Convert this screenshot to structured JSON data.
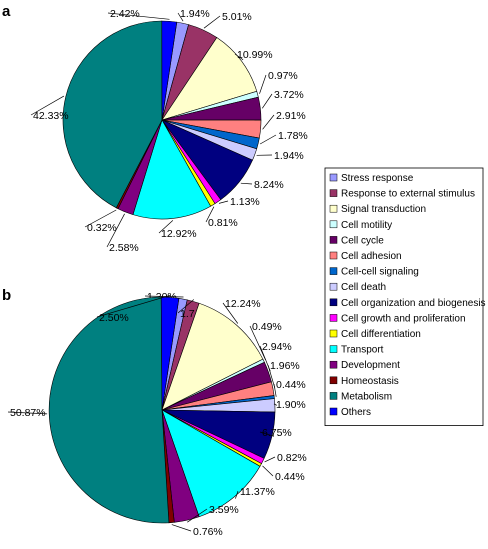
{
  "panel_labels": [
    "a",
    "b"
  ],
  "legend": {
    "entries": [
      {
        "label": "Stress response",
        "color": "#9999ff"
      },
      {
        "label": "Response to external stimulus",
        "color": "#993366"
      },
      {
        "label": "Signal transduction",
        "color": "#ffffcc"
      },
      {
        "label": "Cell motility",
        "color": "#ccffff"
      },
      {
        "label": "Cell cycle",
        "color": "#660066"
      },
      {
        "label": "Cell adhesion",
        "color": "#ff8080"
      },
      {
        "label": "Cell-cell signaling",
        "color": "#0066cc"
      },
      {
        "label": "Cell death",
        "color": "#ccccff"
      },
      {
        "label": "Cell organization and biogenesis",
        "color": "#000080"
      },
      {
        "label": "Cell growth and proliferation",
        "color": "#ff00ff"
      },
      {
        "label": "Cell differentiation",
        "color": "#ffff00"
      },
      {
        "label": "Transport",
        "color": "#00ffff"
      },
      {
        "label": "Development",
        "color": "#800080"
      },
      {
        "label": "Homeostasis",
        "color": "#800000"
      },
      {
        "label": "Metabolism",
        "color": "#008080"
      },
      {
        "label": "Others",
        "color": "#0000ff"
      }
    ]
  },
  "chart_data": [
    {
      "type": "pie",
      "panel": "a",
      "categories": [
        "Stress response",
        "Response to external stimulus",
        "Signal transduction",
        "Cell motility",
        "Cell cycle",
        "Cell adhesion",
        "Cell-cell signaling",
        "Cell death",
        "Cell organization and biogenesis",
        "Cell growth and proliferation",
        "Cell differentiation",
        "Transport",
        "Development",
        "Homeostasis",
        "Metabolism",
        "Others"
      ],
      "values": [
        1.94,
        5.01,
        10.99,
        0.97,
        3.72,
        2.91,
        1.78,
        1.94,
        8.24,
        1.13,
        0.81,
        12.92,
        2.58,
        0.32,
        42.33,
        2.42
      ],
      "labels": [
        "1.94%",
        "5.01%",
        "10.99%",
        "0.97%",
        "3.72%",
        "2.91%",
        "1.78%",
        "1.94%",
        "8.24%",
        "1.13%",
        "0.81%",
        "12.92%",
        "2.58%",
        "0.32%",
        "42.33%",
        "2.42%"
      ]
    },
    {
      "type": "pie",
      "panel": "b",
      "categories": [
        "Stress response",
        "Response to external stimulus",
        "Signal transduction",
        "Cell motility",
        "Cell cycle",
        "Cell adhesion",
        "Cell-cell signaling",
        "Cell death",
        "Cell organization and biogenesis",
        "Cell growth and proliferation",
        "Cell differentiation",
        "Transport",
        "Development",
        "Homeostasis",
        "Metabolism",
        "Others"
      ],
      "values": [
        1.2,
        1.74,
        12.24,
        0.49,
        2.94,
        1.96,
        0.44,
        1.9,
        6.75,
        0.82,
        0.44,
        11.37,
        3.59,
        0.76,
        50.87,
        2.5
      ],
      "labels": [
        "1.20%",
        "1.74%",
        "12.24%",
        "0.49%",
        "2.94%",
        "1.96%",
        "0.44%",
        "1.90%",
        "6.75%",
        "0.82%",
        "0.44%",
        "11.37%",
        "3.59%",
        "0.76%",
        "50.87%",
        "2.50%"
      ]
    }
  ]
}
